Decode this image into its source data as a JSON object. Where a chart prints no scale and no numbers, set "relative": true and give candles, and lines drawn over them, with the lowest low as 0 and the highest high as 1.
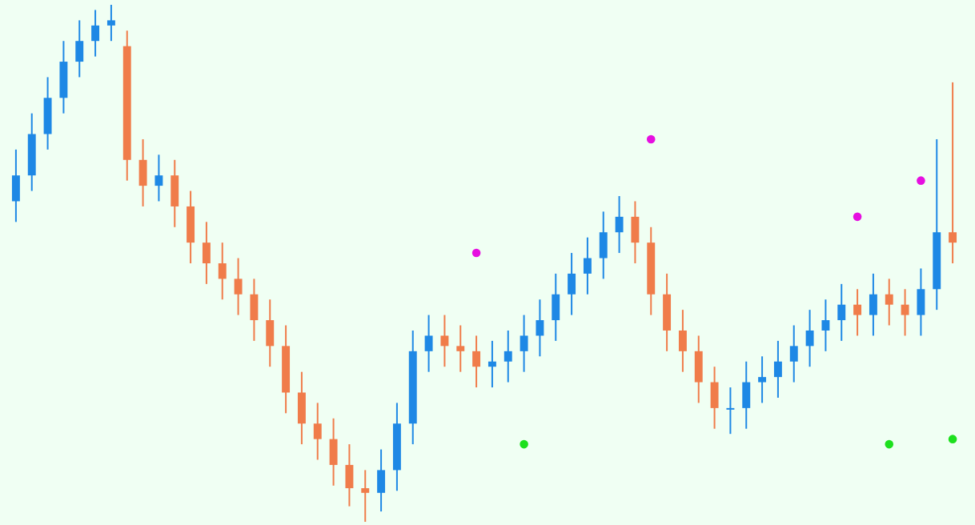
{
  "chart_data": {
    "type": "candlestick",
    "relative": true,
    "marker": "circle",
    "categories": [
      null,
      null,
      null,
      null,
      null,
      null,
      null,
      null,
      null,
      null,
      null,
      null,
      null,
      null,
      null,
      null,
      null,
      null,
      null,
      null,
      null,
      null,
      null,
      null,
      null,
      null,
      null,
      null,
      null,
      null,
      null,
      null,
      null,
      null,
      null,
      null,
      null,
      null,
      null,
      null,
      null,
      null,
      null,
      null,
      null,
      null,
      null,
      null,
      null,
      null,
      null,
      null,
      null,
      null,
      null,
      null,
      null,
      null,
      null,
      null
    ],
    "ohlc": [
      [
        0.62,
        0.72,
        0.58,
        0.67
      ],
      [
        0.67,
        0.79,
        0.64,
        0.75
      ],
      [
        0.75,
        0.86,
        0.72,
        0.82
      ],
      [
        0.82,
        0.93,
        0.79,
        0.89
      ],
      [
        0.89,
        0.97,
        0.86,
        0.93
      ],
      [
        0.93,
        0.99,
        0.9,
        0.96
      ],
      [
        0.96,
        1,
        0.93,
        0.97
      ],
      [
        0.92,
        0.95,
        0.66,
        0.7
      ],
      [
        0.7,
        0.74,
        0.61,
        0.65
      ],
      [
        0.65,
        0.71,
        0.62,
        0.67
      ],
      [
        0.67,
        0.7,
        0.57,
        0.61
      ],
      [
        0.61,
        0.64,
        0.5,
        0.54
      ],
      [
        0.54,
        0.58,
        0.46,
        0.5
      ],
      [
        0.5,
        0.54,
        0.43,
        0.47
      ],
      [
        0.47,
        0.51,
        0.4,
        0.44
      ],
      [
        0.44,
        0.47,
        0.35,
        0.39
      ],
      [
        0.39,
        0.43,
        0.3,
        0.34
      ],
      [
        0.34,
        0.38,
        0.21,
        0.25
      ],
      [
        0.25,
        0.29,
        0.15,
        0.19
      ],
      [
        0.19,
        0.23,
        0.12,
        0.16
      ],
      [
        0.16,
        0.2,
        0.07,
        0.11
      ],
      [
        0.11,
        0.15,
        0.03,
        0.065
      ],
      [
        0.065,
        0.1,
        0,
        0.056
      ],
      [
        0.056,
        0.14,
        0.02,
        0.1
      ],
      [
        0.1,
        0.23,
        0.06,
        0.19
      ],
      [
        0.19,
        0.37,
        0.15,
        0.33
      ],
      [
        0.33,
        0.4,
        0.29,
        0.36
      ],
      [
        0.36,
        0.4,
        0.3,
        0.34
      ],
      [
        0.34,
        0.38,
        0.29,
        0.33
      ],
      [
        0.33,
        0.36,
        0.26,
        0.3
      ],
      [
        0.3,
        0.35,
        0.26,
        0.31
      ],
      [
        0.31,
        0.37,
        0.27,
        0.33
      ],
      [
        0.33,
        0.4,
        0.29,
        0.36
      ],
      [
        0.36,
        0.43,
        0.32,
        0.39
      ],
      [
        0.39,
        0.48,
        0.35,
        0.44
      ],
      [
        0.44,
        0.52,
        0.4,
        0.48
      ],
      [
        0.48,
        0.55,
        0.44,
        0.51
      ],
      [
        0.51,
        0.6,
        0.47,
        0.56
      ],
      [
        0.56,
        0.63,
        0.52,
        0.59
      ],
      [
        0.59,
        0.62,
        0.5,
        0.54
      ],
      [
        0.54,
        0.57,
        0.4,
        0.44
      ],
      [
        0.44,
        0.48,
        0.33,
        0.37
      ],
      [
        0.37,
        0.41,
        0.29,
        0.33
      ],
      [
        0.33,
        0.36,
        0.23,
        0.27
      ],
      [
        0.27,
        0.3,
        0.18,
        0.22
      ],
      [
        0.22,
        0.26,
        0.17,
        0.22
      ],
      [
        0.22,
        0.31,
        0.18,
        0.27
      ],
      [
        0.27,
        0.32,
        0.23,
        0.28
      ],
      [
        0.28,
        0.35,
        0.24,
        0.31
      ],
      [
        0.31,
        0.38,
        0.27,
        0.34
      ],
      [
        0.34,
        0.41,
        0.3,
        0.37
      ],
      [
        0.37,
        0.43,
        0.33,
        0.39
      ],
      [
        0.39,
        0.46,
        0.35,
        0.42
      ],
      [
        0.42,
        0.45,
        0.36,
        0.4
      ],
      [
        0.4,
        0.48,
        0.36,
        0.44
      ],
      [
        0.44,
        0.47,
        0.38,
        0.42
      ],
      [
        0.42,
        0.45,
        0.36,
        0.4
      ],
      [
        0.4,
        0.49,
        0.36,
        0.45
      ],
      [
        0.45,
        0.74,
        0.41,
        0.56
      ],
      [
        0.56,
        0.85,
        0.5,
        0.54
      ]
    ],
    "colors": [
      "#1e88e5",
      "#1e88e5",
      "#1e88e5",
      "#1e88e5",
      "#1e88e5",
      "#1e88e5",
      "#1e88e5",
      "#f07c4a",
      "#f07c4a",
      "#1e88e5",
      "#f07c4a",
      "#f07c4a",
      "#f07c4a",
      "#f07c4a",
      "#f07c4a",
      "#f07c4a",
      "#f07c4a",
      "#f07c4a",
      "#f07c4a",
      "#f07c4a",
      "#f07c4a",
      "#f07c4a",
      "#f07c4a",
      "#1e88e5",
      "#1e88e5",
      "#1e88e5",
      "#1e88e5",
      "#f07c4a",
      "#f07c4a",
      "#f07c4a",
      "#1e88e5",
      "#1e88e5",
      "#1e88e5",
      "#1e88e5",
      "#1e88e5",
      "#1e88e5",
      "#1e88e5",
      "#1e88e5",
      "#1e88e5",
      "#f07c4a",
      "#f07c4a",
      "#f07c4a",
      "#f07c4a",
      "#f07c4a",
      "#f07c4a",
      "#1e88e5",
      "#1e88e5",
      "#1e88e5",
      "#1e88e5",
      "#1e88e5",
      "#1e88e5",
      "#1e88e5",
      "#1e88e5",
      "#f07c4a",
      "#1e88e5",
      "#f07c4a",
      "#f07c4a",
      "#1e88e5",
      "#1e88e5",
      "#f07c4a"
    ],
    "series": [
      {
        "type": "scatter",
        "color": "#e60fe0",
        "values": [
          null,
          null,
          null,
          null,
          null,
          null,
          null,
          null,
          null,
          null,
          null,
          null,
          null,
          null,
          null,
          null,
          null,
          null,
          null,
          null,
          null,
          null,
          null,
          null,
          null,
          null,
          null,
          null,
          null,
          0.52,
          null,
          null,
          null,
          null,
          null,
          null,
          null,
          null,
          null,
          null,
          0.74,
          null,
          null,
          null,
          null,
          null,
          null,
          null,
          null,
          null,
          null,
          null,
          null,
          0.59,
          null,
          null,
          null,
          0.66,
          null,
          null
        ]
      },
      {
        "type": "scatter",
        "color": "#1de01d",
        "values": [
          null,
          null,
          null,
          null,
          null,
          null,
          null,
          null,
          null,
          null,
          null,
          null,
          null,
          null,
          null,
          null,
          null,
          null,
          null,
          null,
          null,
          null,
          null,
          null,
          null,
          null,
          null,
          null,
          null,
          null,
          null,
          null,
          0.15,
          null,
          null,
          null,
          null,
          null,
          null,
          null,
          null,
          null,
          null,
          null,
          null,
          null,
          null,
          null,
          null,
          null,
          null,
          null,
          null,
          null,
          null,
          0.15,
          null,
          null,
          null,
          0.16
        ]
      }
    ]
  }
}
